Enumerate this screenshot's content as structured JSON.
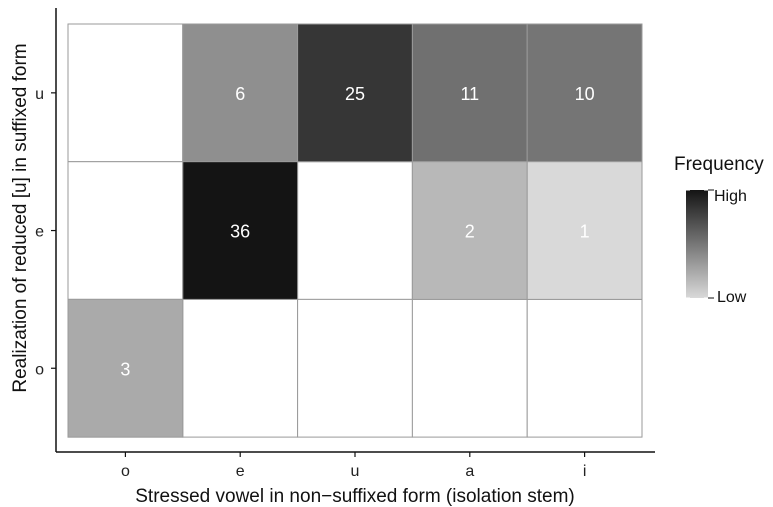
{
  "chart_data": {
    "type": "heatmap",
    "xlabel": "Stressed vowel in non−suffixed form (isolation stem)",
    "ylabel": "Realization of reduced [u] in suffixed form",
    "x_categories": [
      "o",
      "e",
      "u",
      "a",
      "i"
    ],
    "y_categories": [
      "o",
      "e",
      "u"
    ],
    "cells": [
      {
        "x": "e",
        "y": "u",
        "value": 6
      },
      {
        "x": "u",
        "y": "u",
        "value": 25
      },
      {
        "x": "a",
        "y": "u",
        "value": 11
      },
      {
        "x": "i",
        "y": "u",
        "value": 10
      },
      {
        "x": "e",
        "y": "e",
        "value": 36
      },
      {
        "x": "a",
        "y": "e",
        "value": 2
      },
      {
        "x": "i",
        "y": "e",
        "value": 1
      },
      {
        "x": "o",
        "y": "o",
        "value": 3
      }
    ],
    "legend": {
      "title": "Frequency",
      "high_label": "High",
      "low_label": "Low",
      "position": "right"
    },
    "colors": {
      "low": "#d9d9d9",
      "high": "#141414",
      "empty": "#ffffff",
      "grid": "#9a9a9a",
      "axis": "#111111"
    },
    "grid": true
  }
}
